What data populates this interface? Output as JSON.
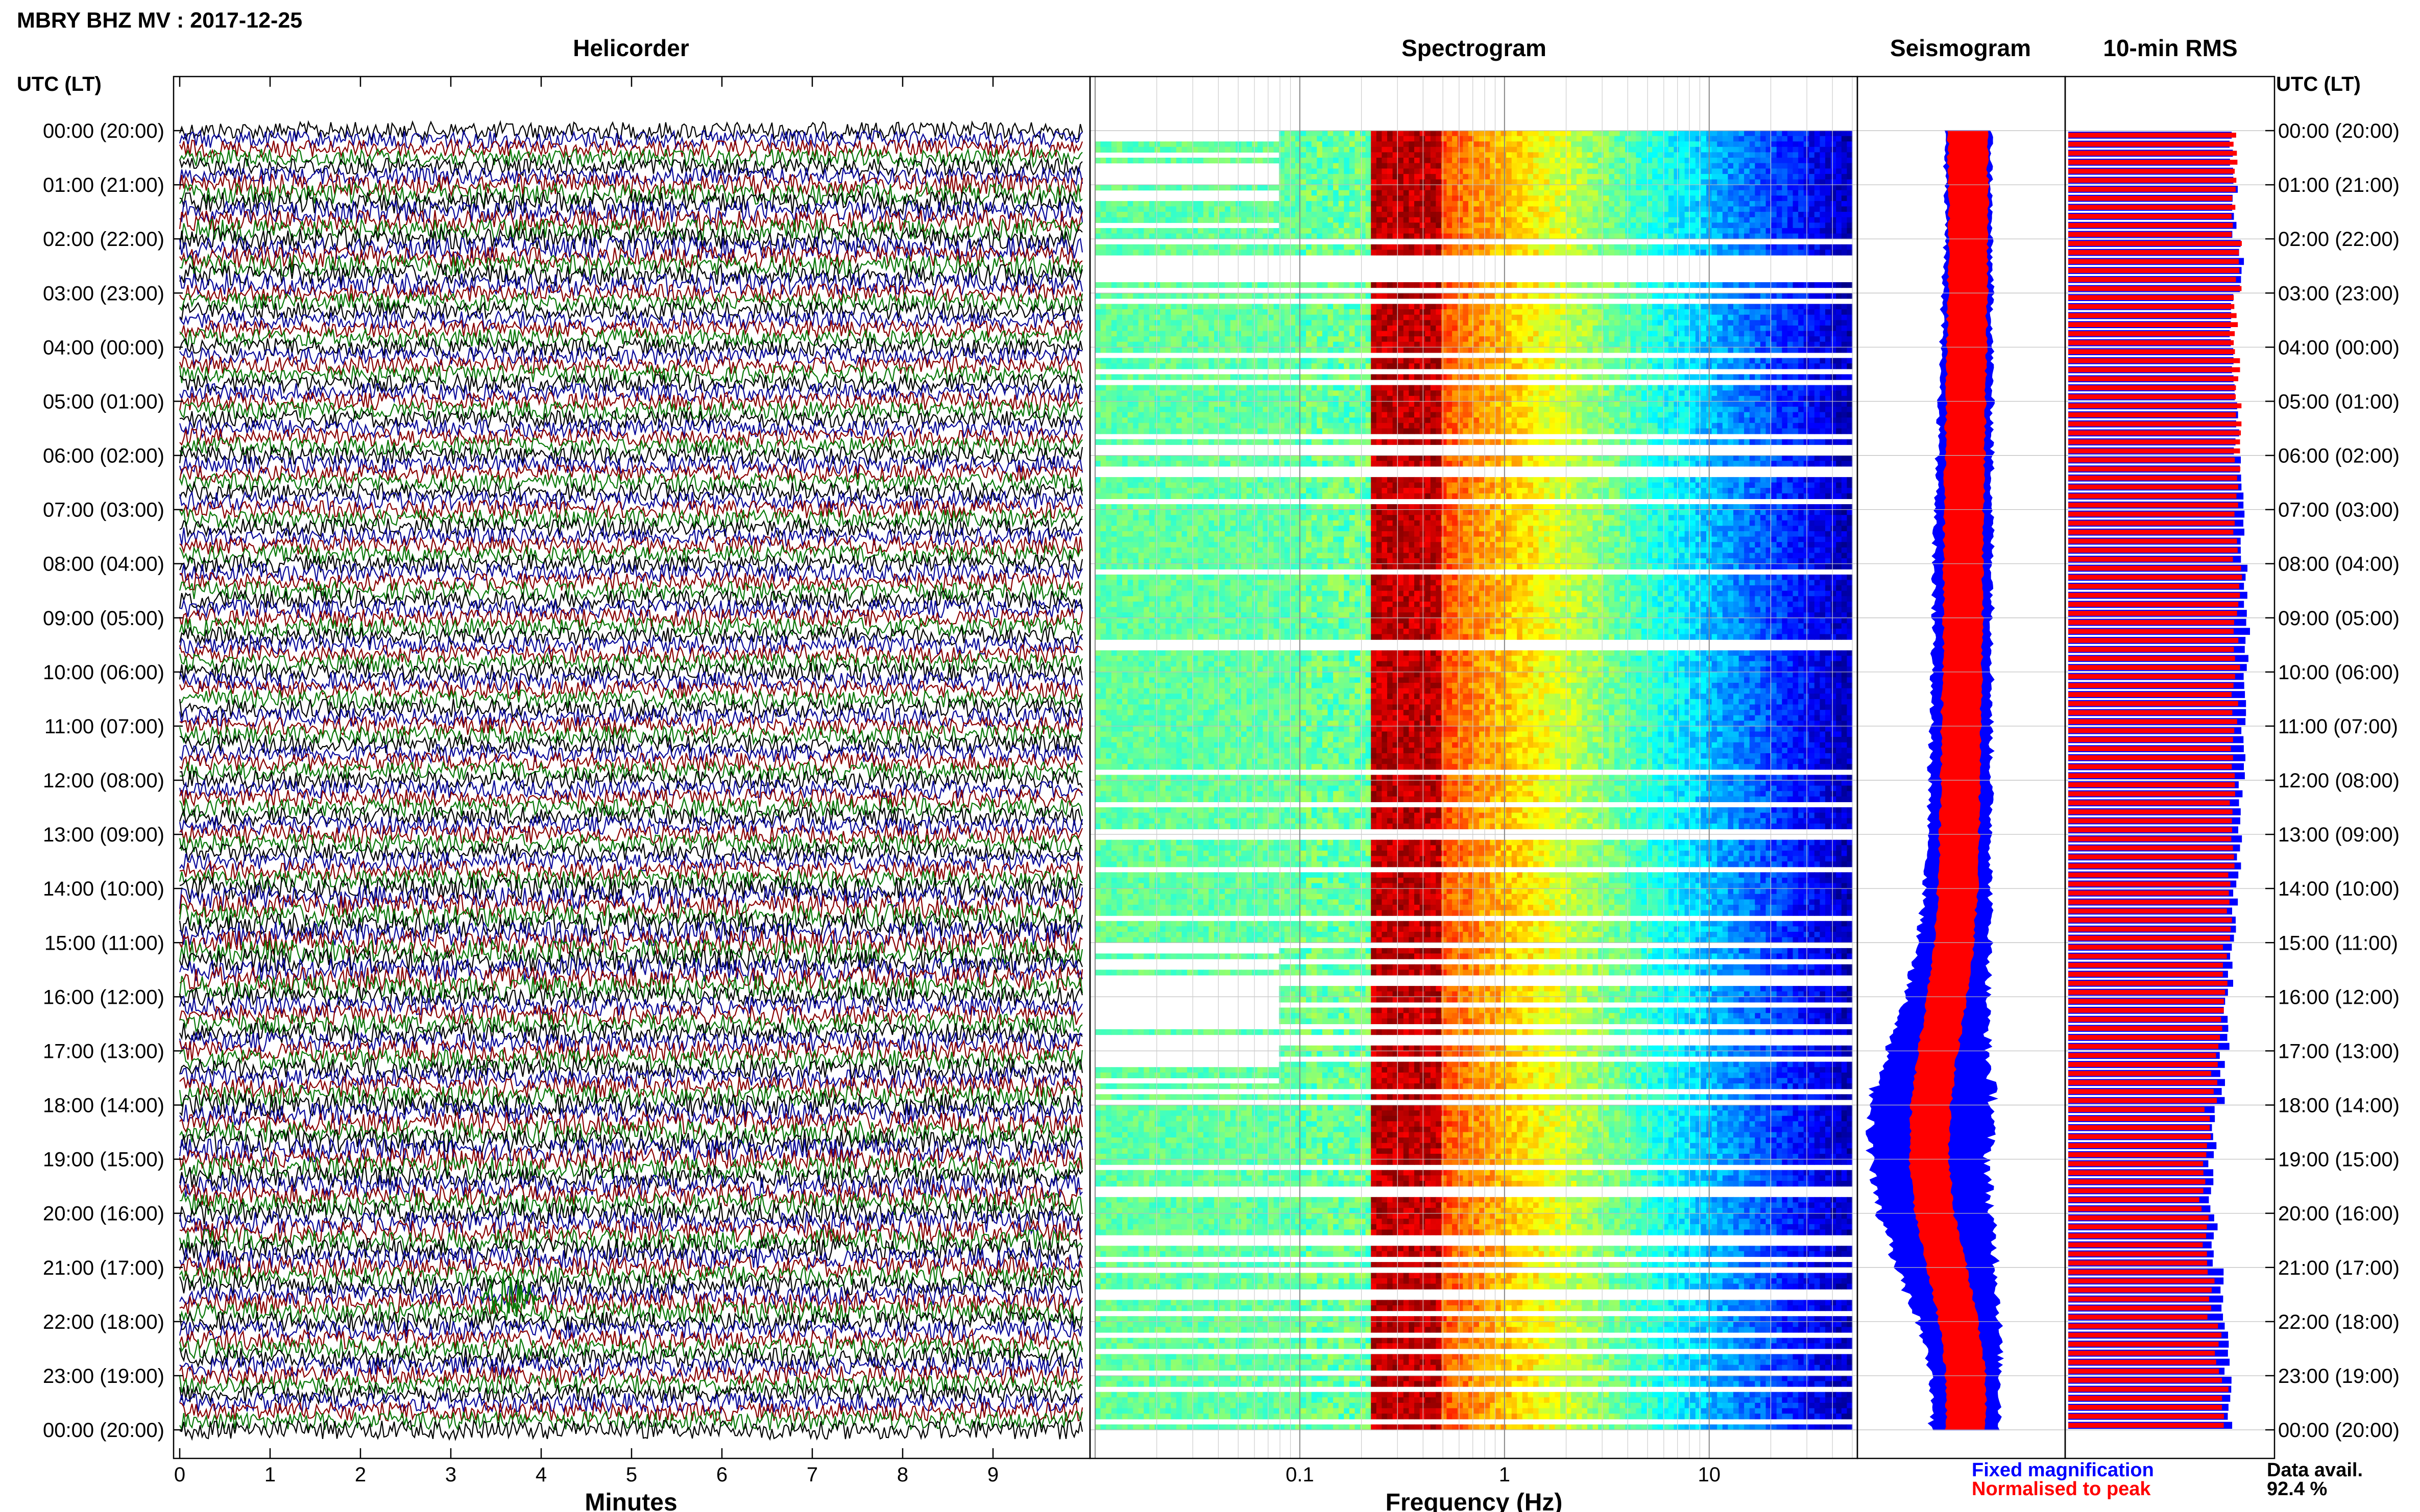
{
  "title": "MBRY BHZ MV : 2017-12-25",
  "time_axis_label": "UTC (LT)",
  "panels": {
    "helicorder": "Helicorder",
    "spectrogram": "Spectrogram",
    "seismogram": "Seismogram",
    "rms": "10-min RMS"
  },
  "legend": {
    "fixed": "Fixed magnification",
    "normalised": "Normalised to peak",
    "data_avail_label": "Data avail.",
    "data_avail_value": "92.4 %"
  },
  "colors": {
    "trace_cycle": [
      "#000000",
      "#0a0a9a",
      "#8a0000",
      "#0a7a0a"
    ],
    "fixed": "#0000ff",
    "normalised": "#ff0000",
    "grid": "#bbbbbb"
  },
  "chart_data": [
    {
      "type": "line",
      "title": "Helicorder",
      "xlabel": "Minutes",
      "x_ticks": [
        0,
        1,
        2,
        3,
        4,
        5,
        6,
        7,
        8,
        9
      ],
      "xlim": [
        0,
        10
      ],
      "y_ticks": [
        "00:00 (20:00)",
        "01:00 (21:00)",
        "02:00 (22:00)",
        "03:00 (23:00)",
        "04:00 (00:00)",
        "05:00 (01:00)",
        "06:00 (02:00)",
        "07:00 (03:00)",
        "08:00 (04:00)",
        "09:00 (05:00)",
        "10:00 (06:00)",
        "11:00 (07:00)",
        "12:00 (08:00)",
        "13:00 (09:00)",
        "14:00 (10:00)",
        "15:00 (11:00)",
        "16:00 (12:00)",
        "17:00 (13:00)",
        "18:00 (14:00)",
        "19:00 (15:00)",
        "20:00 (16:00)",
        "21:00 (17:00)",
        "22:00 (18:00)",
        "23:00 (19:00)",
        "00:00 (20:00)"
      ],
      "rows_per_hour": 6
    },
    {
      "type": "heatmap",
      "title": "Spectrogram",
      "xlabel": "Frequency (Hz)",
      "x_scale": "log",
      "xlim": [
        0.01,
        50
      ],
      "x_ticks": [
        "0.1",
        "1",
        "10"
      ],
      "peak_band_hz": [
        0.22,
        0.5
      ],
      "hourly_gap": [
        0,
        0,
        0.8,
        0.1,
        0.3,
        0.3,
        0.2,
        0.2,
        0.1,
        0.1,
        0.1,
        0.1,
        0.1,
        0.1,
        0.2,
        0.6,
        0.4,
        0.3,
        0.2,
        0.3,
        0.3,
        0.4,
        0.3,
        0.2
      ]
    },
    {
      "type": "area",
      "title": "Seismogram",
      "hourly_fixed_amplitude": [
        0.26,
        0.25,
        0.25,
        0.27,
        0.28,
        0.29,
        0.3,
        0.31,
        0.32,
        0.32,
        0.33,
        0.33,
        0.34,
        0.35,
        0.36,
        0.4,
        0.45,
        0.55,
        0.7,
        0.65,
        0.62,
        0.55,
        0.45,
        0.38
      ],
      "hourly_center_shift": [
        0.05,
        0.06,
        0.06,
        0.05,
        0.04,
        0.03,
        0.02,
        0.01,
        0.0,
        0.0,
        -0.01,
        -0.02,
        -0.03,
        -0.04,
        -0.06,
        -0.1,
        -0.18,
        -0.28,
        -0.36,
        -0.38,
        -0.32,
        -0.18,
        -0.05,
        0.03
      ]
    },
    {
      "type": "bar",
      "title": "10-min RMS",
      "hourly_fixed": [
        0.8,
        0.82,
        0.85,
        0.8,
        0.82,
        0.83,
        0.85,
        0.86,
        0.87,
        0.88,
        0.87,
        0.86,
        0.85,
        0.84,
        0.82,
        0.8,
        0.78,
        0.76,
        0.72,
        0.7,
        0.72,
        0.75,
        0.78,
        0.8
      ],
      "hourly_normalised": [
        0.92,
        0.9,
        0.93,
        0.91,
        0.92,
        0.93,
        0.93,
        0.92,
        0.93,
        0.92,
        0.91,
        0.9,
        0.9,
        0.89,
        0.88,
        0.86,
        0.84,
        0.8,
        0.76,
        0.73,
        0.75,
        0.78,
        0.82,
        0.86
      ]
    }
  ]
}
